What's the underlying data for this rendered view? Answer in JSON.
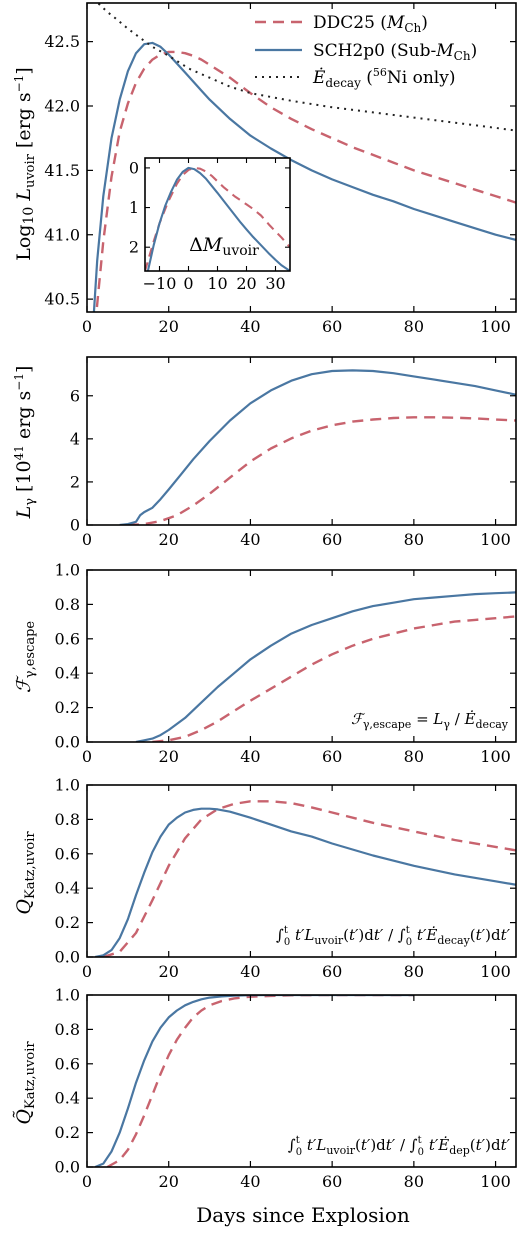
{
  "colors": {
    "ddc25": "#c8636e",
    "sch2p0": "#4a77a2",
    "decay": "#222222"
  },
  "xlabel": "Days since Explosion",
  "x_ticks": [
    "0",
    "20",
    "40",
    "60",
    "80",
    "100"
  ],
  "chart_data": [
    {
      "type": "line",
      "id": "luvoir",
      "ylabel": "Log10 L_uvoir [erg s^-1]",
      "xlim": [
        0,
        105
      ],
      "ylim": [
        40.4,
        42.8
      ],
      "y_ticks": [
        "40.5",
        "41.0",
        "41.5",
        "42.0",
        "42.5"
      ],
      "legend": {
        "placement": "top-right",
        "entries": [
          "DDC25 (M_Ch)",
          "SCH2p0 (Sub-M_Ch)",
          "Ė_decay (56Ni only)"
        ]
      },
      "series": [
        {
          "name": "DDC25 (M_Ch)",
          "x": [
            2,
            4,
            6,
            8,
            10,
            12,
            14,
            16,
            18,
            20,
            22,
            24,
            26,
            28,
            30,
            35,
            40,
            45,
            50,
            55,
            60,
            65,
            70,
            75,
            80,
            85,
            90,
            95,
            100,
            105
          ],
          "y": [
            40.3,
            40.95,
            41.45,
            41.8,
            42.02,
            42.18,
            42.29,
            42.36,
            42.4,
            42.42,
            42.42,
            42.41,
            42.39,
            42.36,
            42.32,
            42.22,
            42.1,
            41.99,
            41.9,
            41.82,
            41.75,
            41.68,
            41.62,
            41.56,
            41.5,
            41.45,
            41.4,
            41.35,
            41.3,
            41.25
          ]
        },
        {
          "name": "SCH2p0 (Sub-M_Ch)",
          "x": [
            1.5,
            2.5,
            4,
            6,
            8,
            10,
            12,
            14,
            16,
            18,
            20,
            22,
            24,
            26,
            28,
            30,
            35,
            40,
            45,
            50,
            55,
            60,
            65,
            70,
            75,
            80,
            85,
            90,
            95,
            100,
            105
          ],
          "y": [
            40.3,
            40.8,
            41.3,
            41.75,
            42.05,
            42.27,
            42.41,
            42.48,
            42.49,
            42.46,
            42.4,
            42.33,
            42.26,
            42.19,
            42.12,
            42.05,
            41.9,
            41.77,
            41.67,
            41.58,
            41.5,
            41.43,
            41.37,
            41.31,
            41.26,
            41.2,
            41.15,
            41.1,
            41.05,
            41.0,
            40.96
          ]
        },
        {
          "name": "Ė_decay (56Ni only)",
          "x": [
            1.5,
            3,
            5,
            7,
            10,
            13,
            16,
            20,
            25,
            30,
            35,
            40,
            50,
            60,
            70,
            80,
            90,
            100,
            105
          ],
          "y": [
            42.83,
            42.79,
            42.73,
            42.68,
            42.6,
            42.53,
            42.46,
            42.39,
            42.29,
            42.22,
            42.15,
            42.1,
            42.04,
            41.99,
            41.95,
            41.91,
            41.87,
            41.83,
            41.81
          ]
        }
      ],
      "inset": {
        "label": "ΔM_uvoir",
        "xlim": [
          -15,
          35
        ],
        "ylim": [
          2.6,
          -0.25
        ],
        "x_ticks": [
          "−10",
          "0",
          "10",
          "20",
          "30"
        ],
        "y_ticks": [
          "0",
          "1",
          "2"
        ],
        "series": [
          {
            "name": "DDC25 (M_Ch)",
            "x": [
              -15,
              -12,
              -10,
              -7,
              -4,
              -2,
              0,
              2,
              4,
              6,
              8,
              10,
              12,
              14,
              16,
              18,
              20,
              22,
              25,
              28,
              30,
              32,
              35
            ],
            "y": [
              2.6,
              1.85,
              1.4,
              0.85,
              0.4,
              0.18,
              0.05,
              0.0,
              0.02,
              0.09,
              0.2,
              0.34,
              0.48,
              0.6,
              0.72,
              0.82,
              0.92,
              1.02,
              1.2,
              1.45,
              1.6,
              1.75,
              2.0
            ]
          },
          {
            "name": "SCH2p0 (Sub-M_Ch)",
            "x": [
              -14,
              -12,
              -10,
              -8,
              -6,
              -4,
              -2,
              0,
              2,
              4,
              6,
              8,
              10,
              12,
              15,
              18,
              20,
              22,
              25,
              28,
              30,
              32,
              35
            ],
            "y": [
              2.6,
              1.95,
              1.4,
              0.95,
              0.6,
              0.3,
              0.1,
              0.0,
              0.03,
              0.13,
              0.27,
              0.45,
              0.63,
              0.82,
              1.1,
              1.38,
              1.55,
              1.72,
              1.95,
              2.18,
              2.32,
              2.45,
              2.6
            ]
          }
        ]
      }
    },
    {
      "type": "line",
      "id": "lgamma",
      "ylabel": "L_γ [10^41 erg s^-1]",
      "xlim": [
        0,
        105
      ],
      "ylim": [
        0,
        7.8
      ],
      "y_ticks": [
        "0",
        "2",
        "4",
        "6"
      ],
      "series": [
        {
          "name": "DDC25 (M_Ch)",
          "x": [
            10,
            14,
            18,
            22,
            26,
            30,
            35,
            40,
            45,
            50,
            55,
            60,
            65,
            70,
            75,
            80,
            85,
            90,
            95,
            100,
            105
          ],
          "y": [
            0,
            0.04,
            0.18,
            0.45,
            0.9,
            1.45,
            2.2,
            2.95,
            3.55,
            4.02,
            4.38,
            4.63,
            4.8,
            4.9,
            4.97,
            5.0,
            5.0,
            4.98,
            4.95,
            4.9,
            4.85
          ]
        },
        {
          "name": "SCH2p0 (Sub-M_Ch)",
          "x": [
            8,
            10,
            12,
            13,
            14,
            16,
            18,
            20,
            23,
            26,
            30,
            35,
            40,
            45,
            50,
            55,
            60,
            65,
            70,
            75,
            80,
            85,
            90,
            95,
            100,
            105
          ],
          "y": [
            0,
            0.04,
            0.15,
            0.45,
            0.6,
            0.8,
            1.2,
            1.65,
            2.35,
            3.05,
            3.9,
            4.85,
            5.65,
            6.25,
            6.7,
            7.0,
            7.15,
            7.18,
            7.15,
            7.05,
            6.9,
            6.75,
            6.6,
            6.45,
            6.25,
            6.05
          ]
        }
      ]
    },
    {
      "type": "line",
      "id": "fesc",
      "ylabel": "F_γ,escape",
      "annotation": "F_γ,escape = L_γ / Ė_decay",
      "xlim": [
        0,
        105
      ],
      "ylim": [
        0,
        1.0
      ],
      "y_ticks": [
        "0.0",
        "0.2",
        "0.4",
        "0.6",
        "0.8",
        "1.0"
      ],
      "series": [
        {
          "name": "DDC25 (M_Ch)",
          "x": [
            16,
            20,
            24,
            28,
            32,
            36,
            40,
            45,
            50,
            55,
            60,
            65,
            70,
            75,
            80,
            85,
            90,
            95,
            100,
            105
          ],
          "y": [
            0,
            0.01,
            0.03,
            0.07,
            0.12,
            0.18,
            0.24,
            0.31,
            0.38,
            0.45,
            0.51,
            0.56,
            0.6,
            0.63,
            0.66,
            0.68,
            0.7,
            0.71,
            0.72,
            0.73
          ]
        },
        {
          "name": "SCH2p0 (Sub-M_Ch)",
          "x": [
            12,
            14,
            16,
            18,
            20,
            24,
            28,
            32,
            36,
            40,
            45,
            50,
            55,
            60,
            65,
            70,
            75,
            80,
            85,
            90,
            95,
            100,
            105
          ],
          "y": [
            0,
            0.01,
            0.02,
            0.04,
            0.07,
            0.14,
            0.23,
            0.32,
            0.4,
            0.48,
            0.56,
            0.63,
            0.68,
            0.72,
            0.76,
            0.79,
            0.81,
            0.83,
            0.84,
            0.85,
            0.86,
            0.865,
            0.87
          ]
        }
      ]
    },
    {
      "type": "line",
      "id": "qkatz",
      "ylabel": "Q_Katz,uvoir",
      "annotation": "∫₀ᵗ t′L_uvoir(t′)dt′ / ∫₀ᵗ t′Ė_decay(t′)dt′",
      "xlim": [
        0,
        105
      ],
      "ylim": [
        0,
        1.0
      ],
      "y_ticks": [
        "0.0",
        "0.2",
        "0.4",
        "0.6",
        "0.8",
        "1.0"
      ],
      "series": [
        {
          "name": "DDC25 (M_Ch)",
          "x": [
            4,
            8,
            12,
            16,
            20,
            24,
            28,
            32,
            36,
            40,
            45,
            50,
            55,
            60,
            70,
            80,
            90,
            100,
            105
          ],
          "y": [
            0,
            0.03,
            0.14,
            0.33,
            0.53,
            0.69,
            0.8,
            0.86,
            0.89,
            0.905,
            0.905,
            0.895,
            0.87,
            0.84,
            0.78,
            0.73,
            0.68,
            0.64,
            0.62
          ]
        },
        {
          "name": "SCH2p0 (Sub-M_Ch)",
          "x": [
            2,
            4,
            6,
            8,
            10,
            12,
            14,
            16,
            18,
            20,
            22,
            24,
            26,
            28,
            30,
            32,
            35,
            40,
            45,
            50,
            55,
            60,
            70,
            80,
            90,
            100,
            105
          ],
          "y": [
            0,
            0.01,
            0.04,
            0.11,
            0.22,
            0.36,
            0.49,
            0.61,
            0.7,
            0.77,
            0.81,
            0.84,
            0.855,
            0.862,
            0.862,
            0.858,
            0.845,
            0.81,
            0.77,
            0.73,
            0.7,
            0.66,
            0.59,
            0.53,
            0.48,
            0.44,
            0.42
          ]
        }
      ]
    },
    {
      "type": "line",
      "id": "qtilde",
      "ylabel": "Q̃_Katz,uvoir",
      "annotation": "∫₀ᵗ t′L_uvoir(t′)dt′ / ∫₀ᵗ t′Ė_dep(t′)dt′",
      "xlim": [
        0,
        105
      ],
      "ylim": [
        0,
        1.0
      ],
      "y_ticks": [
        "0.0",
        "0.2",
        "0.4",
        "0.6",
        "0.8",
        "1.0"
      ],
      "series": [
        {
          "name": "DDC25 (M_Ch)",
          "x": [
            5,
            8,
            10,
            12,
            14,
            16,
            18,
            20,
            22,
            24,
            26,
            28,
            30,
            33,
            36,
            40,
            45,
            50,
            60,
            70,
            80
          ],
          "y": [
            0,
            0.04,
            0.1,
            0.19,
            0.3,
            0.42,
            0.54,
            0.65,
            0.74,
            0.81,
            0.87,
            0.91,
            0.94,
            0.965,
            0.98,
            0.99,
            0.995,
            0.998,
            1.0,
            1.0,
            1.0
          ]
        },
        {
          "name": "SCH2p0 (Sub-M_Ch)",
          "x": [
            2,
            4,
            6,
            8,
            10,
            12,
            14,
            16,
            18,
            20,
            22,
            24,
            26,
            28,
            30,
            33,
            36,
            40,
            45,
            50,
            60,
            70,
            80
          ],
          "y": [
            0,
            0.02,
            0.09,
            0.2,
            0.34,
            0.49,
            0.62,
            0.73,
            0.81,
            0.87,
            0.91,
            0.94,
            0.96,
            0.975,
            0.985,
            0.992,
            0.996,
            0.999,
            1.0,
            1.0,
            1.0,
            1.0,
            1.0
          ]
        }
      ]
    }
  ]
}
